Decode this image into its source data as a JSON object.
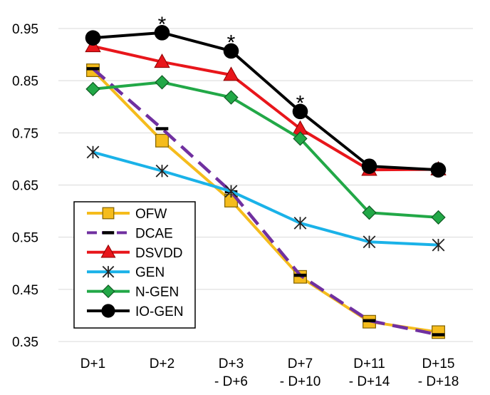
{
  "chart_data": {
    "type": "line",
    "categories": [
      [
        "D+1"
      ],
      [
        "D+2"
      ],
      [
        "D+3",
        "- D+6"
      ],
      [
        "D+7",
        "- D+10"
      ],
      [
        "D+11",
        "- D+14"
      ],
      [
        "D+15",
        "- D+18"
      ]
    ],
    "ylim": [
      0.35,
      0.95
    ],
    "yticks": [
      "0.35",
      "0.45",
      "0.55",
      "0.65",
      "0.75",
      "0.85",
      "0.95"
    ],
    "grid": true,
    "legend_position": "bottom-left",
    "series": [
      {
        "name": "OFW",
        "color": "#F5BC1C",
        "marker": "square",
        "dash": false,
        "values": [
          0.87,
          0.735,
          0.62,
          0.474,
          0.388,
          0.368
        ]
      },
      {
        "name": "DCAE",
        "color": "#7030A0",
        "marker": "dash",
        "dash": true,
        "values": [
          0.873,
          0.758,
          0.637,
          0.477,
          0.39,
          0.363
        ]
      },
      {
        "name": "DSVDD",
        "color": "#E8161B",
        "marker": "triangle",
        "dash": false,
        "values": [
          0.916,
          0.886,
          0.861,
          0.758,
          0.679,
          0.68
        ]
      },
      {
        "name": "GEN",
        "color": "#1AB2E8",
        "marker": "asterisk",
        "dash": false,
        "values": [
          0.713,
          0.677,
          0.638,
          0.577,
          0.541,
          0.535
        ]
      },
      {
        "name": "N-GEN",
        "color": "#22A847",
        "marker": "diamond",
        "dash": false,
        "values": [
          0.834,
          0.847,
          0.818,
          0.739,
          0.597,
          0.588
        ]
      },
      {
        "name": "IO-GEN",
        "color": "#000000",
        "marker": "circle",
        "dash": false,
        "values": [
          0.932,
          0.942,
          0.907,
          0.791,
          0.686,
          0.679
        ]
      }
    ],
    "annotations": [
      {
        "text": "*",
        "category_index": 1,
        "y": 0.942
      },
      {
        "text": "*",
        "category_index": 2,
        "y": 0.907
      },
      {
        "text": "*",
        "category_index": 3,
        "y": 0.791
      }
    ]
  }
}
